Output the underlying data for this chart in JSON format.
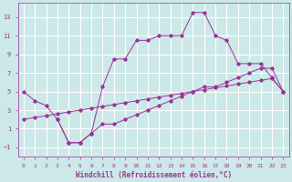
{
  "xlabel": "Windchill (Refroidissement éolien,°C)",
  "bg_color": "#cce8e8",
  "grid_color": "#ffffff",
  "line_color": "#993399",
  "curve1_x": [
    0,
    1,
    2,
    3,
    4,
    5,
    6,
    7,
    8,
    9,
    10,
    11,
    12,
    13,
    14,
    15,
    16,
    17,
    18,
    19,
    20,
    21,
    22,
    23
  ],
  "curve1_y": [
    5.0,
    4.0,
    3.5,
    2.0,
    -0.5,
    -0.5,
    0.5,
    5.5,
    8.5,
    8.5,
    10.5,
    10.5,
    11.0,
    11.0,
    11.0,
    13.5,
    13.5,
    11.0,
    10.5,
    8.0,
    8.0,
    8.0,
    6.5,
    5.0
  ],
  "curve2_x": [
    0,
    1,
    2,
    3,
    4,
    5,
    6,
    7,
    8,
    9,
    10,
    11,
    12,
    13,
    14,
    15,
    16,
    17,
    18,
    19,
    20,
    21,
    22,
    23
  ],
  "curve2_y": [
    2.0,
    2.2,
    2.4,
    2.6,
    2.8,
    3.0,
    3.2,
    3.4,
    3.6,
    3.8,
    4.0,
    4.2,
    4.4,
    4.6,
    4.8,
    5.0,
    5.2,
    5.4,
    5.6,
    5.8,
    6.0,
    6.2,
    6.4,
    5.0
  ],
  "curve3_x": [
    3,
    4,
    5,
    6,
    7,
    8,
    9,
    10,
    11,
    12,
    13,
    14,
    15,
    16,
    17,
    18,
    19,
    20,
    21,
    22,
    23
  ],
  "curve3_y": [
    2.0,
    -0.5,
    -0.5,
    0.5,
    1.5,
    1.5,
    2.0,
    2.5,
    3.0,
    3.5,
    4.0,
    4.5,
    5.0,
    5.5,
    5.5,
    6.0,
    6.5,
    7.0,
    7.5,
    7.5,
    5.0
  ],
  "xlim": [
    -0.5,
    23.5
  ],
  "ylim": [
    -2.0,
    14.5
  ],
  "yticks": [
    -1,
    1,
    3,
    5,
    7,
    9,
    11,
    13
  ],
  "xticks": [
    0,
    1,
    2,
    3,
    4,
    5,
    6,
    7,
    8,
    9,
    10,
    11,
    12,
    13,
    14,
    15,
    16,
    17,
    18,
    19,
    20,
    21,
    22,
    23
  ]
}
